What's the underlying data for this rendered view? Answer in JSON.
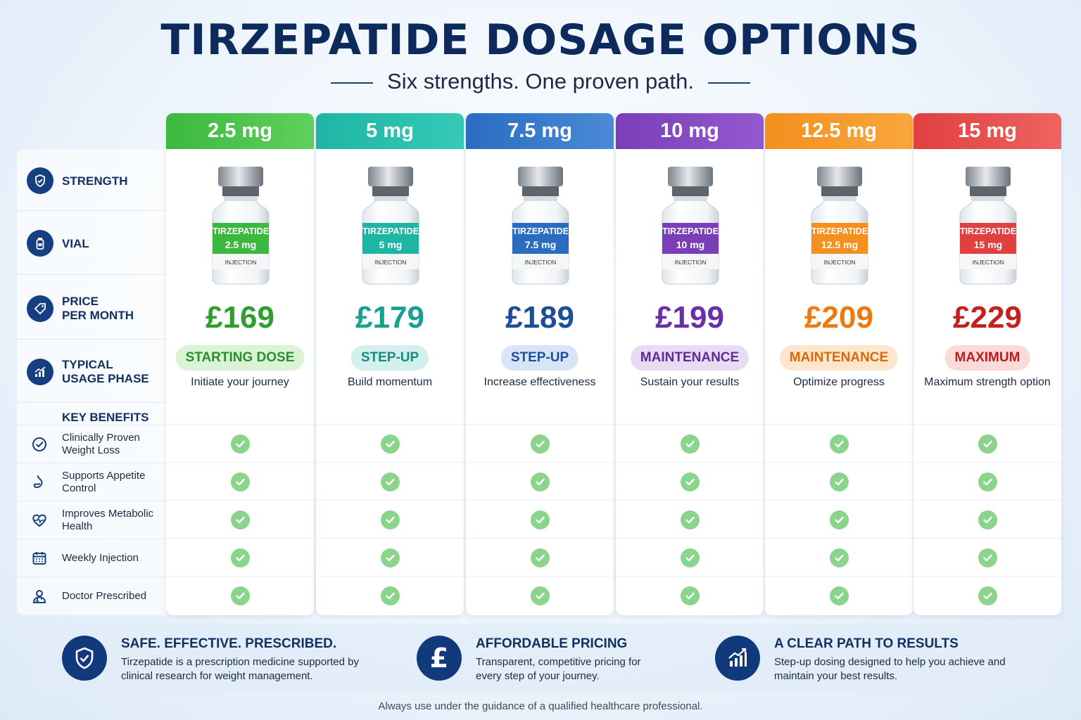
{
  "header": {
    "title": "TIRZEPATIDE DOSAGE OPTIONS",
    "subtitle": "Six strengths. One proven path."
  },
  "row_labels": {
    "strength": "STRENGTH",
    "vial": "VIAL",
    "price_line1": "PRICE",
    "price_line2": "PER MONTH",
    "phase_line1": "TYPICAL",
    "phase_line2": "USAGE PHASE",
    "key_benefits": "KEY BENEFITS"
  },
  "benefits": [
    {
      "label": "Clinically Proven Weight Loss",
      "icon": "check-circle-icon"
    },
    {
      "label": "Supports Appetite Control",
      "icon": "stomach-icon"
    },
    {
      "label": "Improves Metabolic Health",
      "icon": "heart-pulse-icon"
    },
    {
      "label": "Weekly Injection",
      "icon": "calendar-icon"
    },
    {
      "label": "Doctor Prescribed",
      "icon": "doctor-icon"
    }
  ],
  "doses": [
    {
      "strength": "2.5 mg",
      "vial_name": "TIRZEPATIDE",
      "vial_dose": "2.5 mg",
      "vial_type": "INJECTION",
      "price": "£169",
      "phase": "STARTING DOSE",
      "description": "Initiate your journey",
      "color": "#3cb83f",
      "color_light": "#5fd05c",
      "phase_bg": "#d9f3d4",
      "price_color": "#2e9e2f",
      "phase_color": "#2a8f2c",
      "included": [
        true,
        true,
        true,
        true,
        true
      ]
    },
    {
      "strength": "5 mg",
      "vial_name": "TIRZEPATIDE",
      "vial_dose": "5 mg",
      "vial_type": "INJECTION",
      "price": "£179",
      "phase": "STEP-UP",
      "description": "Build momentum",
      "color": "#1fb5a4",
      "color_light": "#35c9b6",
      "phase_bg": "#d3f0ed",
      "price_color": "#18a090",
      "phase_color": "#168a7d",
      "included": [
        true,
        true,
        true,
        true,
        true
      ]
    },
    {
      "strength": "7.5 mg",
      "vial_name": "TIRZEPATIDE",
      "vial_dose": "7.5 mg",
      "vial_type": "INJECTION",
      "price": "£189",
      "phase": "STEP-UP",
      "description": "Increase effectiveness",
      "color": "#2a6dc0",
      "color_light": "#4a8ad6",
      "phase_bg": "#d7e5f7",
      "price_color": "#1c4f98",
      "phase_color": "#1c4f98",
      "included": [
        true,
        true,
        true,
        true,
        true
      ]
    },
    {
      "strength": "10 mg",
      "vial_name": "TIRZEPATIDE",
      "vial_dose": "10 mg",
      "vial_type": "INJECTION",
      "price": "£199",
      "phase": "MAINTENANCE",
      "description": "Sustain your results",
      "color": "#7a3fb8",
      "color_light": "#9458cf",
      "phase_bg": "#e8dcf5",
      "price_color": "#6a2fa8",
      "phase_color": "#5f2a96",
      "included": [
        true,
        true,
        true,
        true,
        true
      ]
    },
    {
      "strength": "12.5 mg",
      "vial_name": "TIRZEPATIDE",
      "vial_dose": "12.5 mg",
      "vial_type": "INJECTION",
      "price": "£209",
      "phase": "MAINTENANCE",
      "description": "Optimize progress",
      "color": "#f3901e",
      "color_light": "#f9a63c",
      "phase_bg": "#fde6cd",
      "price_color": "#ec7a10",
      "phase_color": "#d8690c",
      "included": [
        true,
        true,
        true,
        true,
        true
      ]
    },
    {
      "strength": "15 mg",
      "vial_name": "TIRZEPATIDE",
      "vial_dose": "15 mg",
      "vial_type": "INJECTION",
      "price": "£229",
      "phase": "MAXIMUM",
      "description": "Maximum strength option",
      "color": "#e0403f",
      "color_light": "#ee6360",
      "phase_bg": "#fbdada",
      "price_color": "#c4201e",
      "phase_color": "#b81e1c",
      "included": [
        true,
        true,
        true,
        true,
        true
      ]
    }
  ],
  "features": [
    {
      "title": "SAFE. EFFECTIVE. PRESCRIBED.",
      "text": "Tirzepatide is a prescription medicine supported by clinical research for weight management.",
      "icon": "shield-check-icon"
    },
    {
      "title": "AFFORDABLE PRICING",
      "text": "Transparent, competitive pricing for every step of your journey.",
      "icon": "pound-icon"
    },
    {
      "title": "A CLEAR PATH TO RESULTS",
      "text": "Step-up dosing designed to help you achieve and maintain your best results.",
      "icon": "growth-chart-icon"
    }
  ],
  "footer": "Always use under the guidance of a qualified healthcare professional."
}
